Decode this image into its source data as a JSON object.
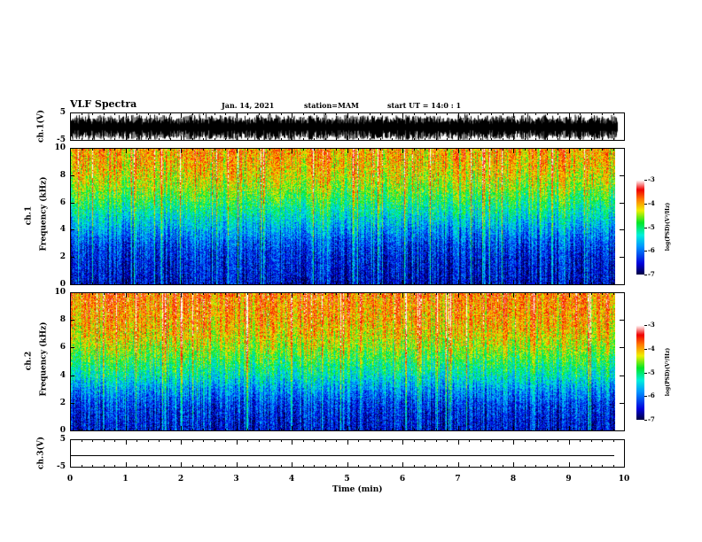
{
  "header": {
    "title": "VLF Spectra",
    "date": "Jan. 14, 2021",
    "station": "station=MAM",
    "start": "start  UT =   14:0  : 1"
  },
  "chart_data": {
    "type": "heatmap",
    "x_axis": {
      "label": "Time  (min)",
      "range": [
        0,
        10
      ],
      "ticks": [
        "0",
        "1",
        "2",
        "3",
        "4",
        "5",
        "6",
        "7",
        "8",
        "9",
        "10"
      ],
      "data_end": 9.85
    },
    "panels": [
      {
        "name": "ch1-waveform",
        "type": "line",
        "ylabel": "ch.1(V)",
        "ylim": [
          -5,
          5
        ],
        "yticks": [
          "5",
          "-5"
        ]
      },
      {
        "name": "ch1-spectrogram",
        "type": "heatmap",
        "ylabel_top": "ch.1",
        "ylabel": "Frequency  (kHz)",
        "ylim": [
          0,
          10
        ],
        "yticks": [
          "10",
          "8",
          "6",
          "4",
          "2",
          "0"
        ],
        "colorbar": {
          "label": "log(PSD)(V²/Hz)",
          "range": [
            -7,
            -3
          ],
          "ticks": [
            "-3",
            "-4",
            "-5",
            "-6",
            "-7"
          ]
        },
        "profile_freq_khz": [
          0,
          1,
          2,
          3,
          4,
          5,
          6,
          7,
          8,
          9,
          10
        ],
        "profile_logpsd": [
          -6.6,
          -6.5,
          -6.4,
          -6.2,
          -5.8,
          -5.4,
          -5.0,
          -4.6,
          -4.3,
          -4.1,
          -4.0
        ]
      },
      {
        "name": "ch2-spectrogram",
        "type": "heatmap",
        "ylabel_top": "ch.2",
        "ylabel": "Frequency  (kHz)",
        "ylim": [
          0,
          10
        ],
        "yticks": [
          "10",
          "8",
          "6",
          "4",
          "2",
          "0"
        ],
        "colorbar": {
          "label": "log(PSD)(V²/Hz)",
          "range": [
            -7,
            -3
          ],
          "ticks": [
            "-3",
            "-4",
            "-5",
            "-6",
            "-7"
          ]
        },
        "profile_freq_khz": [
          0,
          1,
          2,
          3,
          4,
          5,
          6,
          7,
          8,
          9,
          10
        ],
        "profile_logpsd": [
          -6.5,
          -6.4,
          -6.2,
          -5.8,
          -5.3,
          -4.9,
          -4.5,
          -4.2,
          -4.0,
          -3.9,
          -3.8
        ]
      },
      {
        "name": "ch3-waveform",
        "type": "line",
        "ylabel": "ch.3(V)",
        "ylim": [
          -5,
          5
        ],
        "yticks": [
          "5",
          "-5"
        ],
        "constant_value": -1.2
      }
    ]
  }
}
